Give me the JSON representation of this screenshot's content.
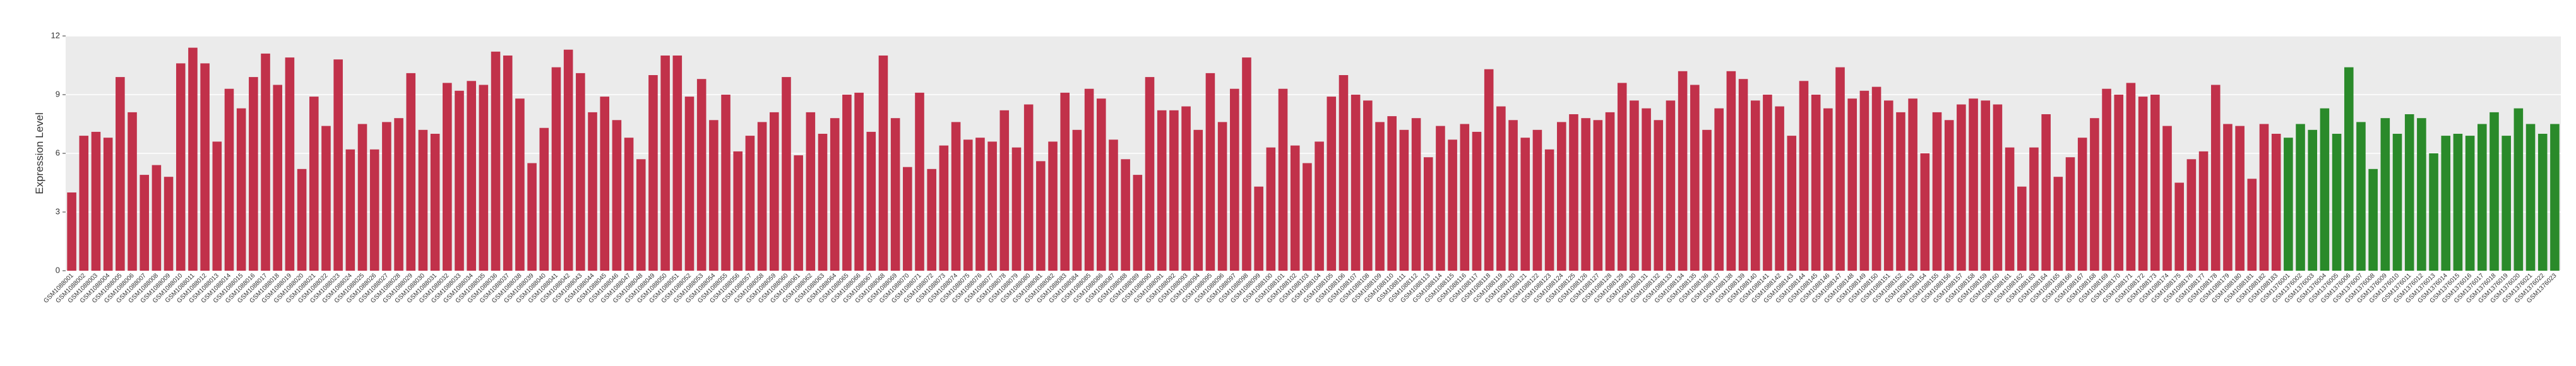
{
  "chart_data": {
    "type": "bar",
    "y_label": "Expression Level",
    "categories": [
      "GSM1088001",
      "GSM1088002",
      "GSM1088003",
      "GSM1088004",
      "GSM1088005",
      "GSM1088006",
      "GSM1088007",
      "GSM1088008",
      "GSM1088009",
      "GSM1088010",
      "GSM1088011",
      "GSM1088012",
      "GSM1088013",
      "GSM1088014",
      "GSM1088015",
      "GSM1088016",
      "GSM1088017",
      "GSM1088018",
      "GSM1088019",
      "GSM1088020",
      "GSM1088021",
      "GSM1088022",
      "GSM1088023",
      "GSM1088024",
      "GSM1088025",
      "GSM1088026",
      "GSM1088027",
      "GSM1088028",
      "GSM1088029",
      "GSM1088030",
      "GSM1088031",
      "GSM1088032",
      "GSM1088033",
      "GSM1088034",
      "GSM1088035",
      "GSM1088036",
      "GSM1088037",
      "GSM1088038",
      "GSM1088039",
      "GSM1088040",
      "GSM1088041",
      "GSM1088042",
      "GSM1088043",
      "GSM1088044",
      "GSM1088045",
      "GSM1088046",
      "GSM1088047",
      "GSM1088048",
      "GSM1088049",
      "GSM1088050",
      "GSM1088051",
      "GSM1088052",
      "GSM1088053",
      "GSM1088054",
      "GSM1088055",
      "GSM1088056",
      "GSM1088057",
      "GSM1088058",
      "GSM1088059",
      "GSM1088060",
      "GSM1088061",
      "GSM1088062",
      "GSM1088063",
      "GSM1088064",
      "GSM1088065",
      "GSM1088066",
      "GSM1088067",
      "GSM1088068",
      "GSM1088069",
      "GSM1088070",
      "GSM1088071",
      "GSM1088072",
      "GSM1088073",
      "GSM1088074",
      "GSM1088075",
      "GSM1088076",
      "GSM1088077",
      "GSM1088078",
      "GSM1088079",
      "GSM1088080",
      "GSM1088081",
      "GSM1088082",
      "GSM1088083",
      "GSM1088084",
      "GSM1088085",
      "GSM1088086",
      "GSM1088087",
      "GSM1088088",
      "GSM1088089",
      "GSM1088090",
      "GSM1088091",
      "GSM1088092",
      "GSM1088093",
      "GSM1088094",
      "GSM1088095",
      "GSM1088096",
      "GSM1088097",
      "GSM1088098",
      "GSM1088099",
      "GSM1088100",
      "GSM1088101",
      "GSM1088102",
      "GSM1088103",
      "GSM1088104",
      "GSM1088105",
      "GSM1088106",
      "GSM1088107",
      "GSM1088108",
      "GSM1088109",
      "GSM1088110",
      "GSM1088111",
      "GSM1088112",
      "GSM1088113",
      "GSM1088114",
      "GSM1088115",
      "GSM1088116",
      "GSM1088117",
      "GSM1088118",
      "GSM1088119",
      "GSM1088120",
      "GSM1088121",
      "GSM1088122",
      "GSM1088123",
      "GSM1088124",
      "GSM1088125",
      "GSM1088126",
      "GSM1088127",
      "GSM1088128",
      "GSM1088129",
      "GSM1088130",
      "GSM1088131",
      "GSM1088132",
      "GSM1088133",
      "GSM1088134",
      "GSM1088135",
      "GSM1088136",
      "GSM1088137",
      "GSM1088138",
      "GSM1088139",
      "GSM1088140",
      "GSM1088141",
      "GSM1088142",
      "GSM1088143",
      "GSM1088144",
      "GSM1088145",
      "GSM1088146",
      "GSM1088147",
      "GSM1088148",
      "GSM1088149",
      "GSM1088150",
      "GSM1088151",
      "GSM1088152",
      "GSM1088153",
      "GSM1088154",
      "GSM1088155",
      "GSM1088156",
      "GSM1088157",
      "GSM1088158",
      "GSM1088159",
      "GSM1088160",
      "GSM1088161",
      "GSM1088162",
      "GSM1088163",
      "GSM1088164",
      "GSM1088165",
      "GSM1088166",
      "GSM1088167",
      "GSM1088168",
      "GSM1088169",
      "GSM1088170",
      "GSM1088171",
      "GSM1088172",
      "GSM1088173",
      "GSM1088174",
      "GSM1088175",
      "GSM1088176",
      "GSM1088177",
      "GSM1088178",
      "GSM1088179",
      "GSM1088180",
      "GSM1088181",
      "GSM1088182",
      "GSM1088183",
      "GSM1376001",
      "GSM1376002",
      "GSM1376003",
      "GSM1376004",
      "GSM1376005",
      "GSM1376006",
      "GSM1376007",
      "GSM1376008",
      "GSM1376009",
      "GSM1376010",
      "GSM1376011",
      "GSM1376012",
      "GSM1376013",
      "GSM1376014",
      "GSM1376015",
      "GSM1376016",
      "GSM1376017",
      "GSM1376018",
      "GSM1376019",
      "GSM1376020",
      "GSM1376021",
      "GSM1376022",
      "GSM1376023"
    ],
    "values": [
      4.0,
      6.9,
      7.1,
      6.8,
      9.9,
      8.1,
      4.9,
      5.4,
      4.8,
      10.6,
      11.4,
      10.6,
      6.6,
      9.3,
      8.3,
      9.9,
      11.1,
      9.5,
      10.9,
      5.2,
      8.9,
      7.4,
      10.8,
      6.2,
      7.5,
      6.2,
      7.6,
      7.8,
      10.1,
      7.2,
      7.0,
      9.6,
      9.2,
      9.7,
      9.5,
      11.2,
      11.0,
      8.8,
      5.5,
      7.3,
      10.4,
      11.3,
      10.1,
      8.1,
      8.9,
      7.7,
      6.8,
      5.7,
      10.0,
      11.0,
      11.0,
      8.9,
      9.8,
      7.7,
      9.0,
      6.1,
      6.9,
      7.6,
      8.1,
      9.9,
      5.9,
      8.1,
      7.0,
      7.8,
      9.0,
      9.1,
      7.1,
      11.0,
      7.8,
      5.3,
      9.1,
      5.2,
      6.4,
      7.6,
      6.7,
      6.8,
      6.6,
      8.2,
      6.3,
      8.5,
      5.6,
      6.6,
      9.1,
      7.2,
      9.3,
      8.8,
      6.7,
      5.7,
      4.9,
      9.9,
      8.2,
      8.2,
      8.4,
      7.2,
      10.1,
      7.6,
      9.3,
      10.9,
      4.3,
      6.3,
      9.3,
      6.4,
      5.5,
      6.6,
      8.9,
      10.0,
      9.0,
      8.7,
      7.6,
      7.9,
      7.2,
      7.8,
      5.8,
      7.4,
      6.7,
      7.5,
      7.1,
      10.3,
      8.4,
      7.7,
      6.8,
      7.2,
      6.2,
      7.6,
      8.0,
      7.8,
      7.7,
      8.1,
      9.6,
      8.7,
      8.3,
      7.7,
      8.7,
      10.2,
      9.5,
      7.2,
      8.3,
      10.2,
      9.8,
      8.7,
      9.0,
      8.4,
      6.9,
      9.7,
      9.0,
      8.3,
      10.4,
      8.8,
      9.2,
      9.4,
      8.7,
      8.1,
      8.8,
      6.0,
      8.1,
      7.7,
      8.5,
      8.8,
      8.7,
      8.5,
      6.3,
      4.3,
      6.3,
      8.0,
      4.8,
      5.8,
      6.8,
      7.8,
      9.3,
      9.0,
      9.6,
      8.9,
      9.0,
      7.4,
      4.5,
      5.7,
      6.1,
      9.5,
      7.5,
      7.4,
      4.7,
      7.5,
      7.0,
      6.8,
      7.5,
      7.2,
      8.3,
      7.0,
      10.4,
      7.6,
      5.2,
      7.8,
      7.0,
      8.0,
      7.8,
      6.0,
      6.9,
      7.0,
      6.9,
      7.5,
      8.1,
      6.9,
      8.3,
      7.5,
      7.0,
      7.5
    ],
    "colors": [
      "#c1314a",
      "#c1314a",
      "#c1314a",
      "#c1314a",
      "#c1314a",
      "#c1314a",
      "#c1314a",
      "#c1314a",
      "#c1314a",
      "#c1314a",
      "#c1314a",
      "#c1314a",
      "#c1314a",
      "#c1314a",
      "#c1314a",
      "#c1314a",
      "#c1314a",
      "#c1314a",
      "#c1314a",
      "#c1314a",
      "#c1314a",
      "#c1314a",
      "#c1314a",
      "#c1314a",
      "#c1314a",
      "#c1314a",
      "#c1314a",
      "#c1314a",
      "#c1314a",
      "#c1314a",
      "#c1314a",
      "#c1314a",
      "#c1314a",
      "#c1314a",
      "#c1314a",
      "#c1314a",
      "#c1314a",
      "#c1314a",
      "#c1314a",
      "#c1314a",
      "#c1314a",
      "#c1314a",
      "#c1314a",
      "#c1314a",
      "#c1314a",
      "#c1314a",
      "#c1314a",
      "#c1314a",
      "#c1314a",
      "#c1314a",
      "#c1314a",
      "#c1314a",
      "#c1314a",
      "#c1314a",
      "#c1314a",
      "#c1314a",
      "#c1314a",
      "#c1314a",
      "#c1314a",
      "#c1314a",
      "#c1314a",
      "#c1314a",
      "#c1314a",
      "#c1314a",
      "#c1314a",
      "#c1314a",
      "#c1314a",
      "#c1314a",
      "#c1314a",
      "#c1314a",
      "#c1314a",
      "#c1314a",
      "#c1314a",
      "#c1314a",
      "#c1314a",
      "#c1314a",
      "#c1314a",
      "#c1314a",
      "#c1314a",
      "#c1314a",
      "#c1314a",
      "#c1314a",
      "#c1314a",
      "#c1314a",
      "#c1314a",
      "#c1314a",
      "#c1314a",
      "#c1314a",
      "#c1314a",
      "#c1314a",
      "#c1314a",
      "#c1314a",
      "#c1314a",
      "#c1314a",
      "#c1314a",
      "#c1314a",
      "#c1314a",
      "#c1314a",
      "#c1314a",
      "#c1314a",
      "#c1314a",
      "#c1314a",
      "#c1314a",
      "#c1314a",
      "#c1314a",
      "#c1314a",
      "#c1314a",
      "#c1314a",
      "#c1314a",
      "#c1314a",
      "#c1314a",
      "#c1314a",
      "#c1314a",
      "#c1314a",
      "#c1314a",
      "#c1314a",
      "#c1314a",
      "#c1314a",
      "#c1314a",
      "#c1314a",
      "#c1314a",
      "#c1314a",
      "#c1314a",
      "#c1314a",
      "#c1314a",
      "#c1314a",
      "#c1314a",
      "#c1314a",
      "#c1314a",
      "#c1314a",
      "#c1314a",
      "#c1314a",
      "#c1314a",
      "#c1314a",
      "#c1314a",
      "#c1314a",
      "#c1314a",
      "#c1314a",
      "#c1314a",
      "#c1314a",
      "#c1314a",
      "#c1314a",
      "#c1314a",
      "#c1314a",
      "#c1314a",
      "#c1314a",
      "#c1314a",
      "#c1314a",
      "#c1314a",
      "#c1314a",
      "#c1314a",
      "#c1314a",
      "#c1314a",
      "#c1314a",
      "#c1314a",
      "#c1314a",
      "#c1314a",
      "#c1314a",
      "#c1314a",
      "#c1314a",
      "#c1314a",
      "#c1314a",
      "#c1314a",
      "#c1314a",
      "#c1314a",
      "#c1314a",
      "#c1314a",
      "#c1314a",
      "#c1314a",
      "#c1314a",
      "#c1314a",
      "#c1314a",
      "#c1314a",
      "#c1314a",
      "#c1314a",
      "#c1314a",
      "#c1314a",
      "#c1314a",
      "#c1314a",
      "#c1314a",
      "#c1314a",
      "#c1314a",
      "#c1314a",
      "#2a8a2a",
      "#2a8a2a",
      "#2a8a2a",
      "#2a8a2a",
      "#2a8a2a",
      "#2a8a2a",
      "#2a8a2a",
      "#2a8a2a",
      "#2a8a2a",
      "#2a8a2a",
      "#2a8a2a",
      "#2a8a2a",
      "#2a8a2a",
      "#2a8a2a",
      "#2a8a2a",
      "#2a8a2a",
      "#2a8a2a",
      "#2a8a2a",
      "#2a8a2a",
      "#2a8a2a",
      "#2a8a2a",
      "#2a8a2a",
      "#2a8a2a"
    ],
    "ylim": [
      0,
      12
    ],
    "yticks": [
      0,
      3,
      6,
      9,
      12
    ],
    "grid": true
  }
}
